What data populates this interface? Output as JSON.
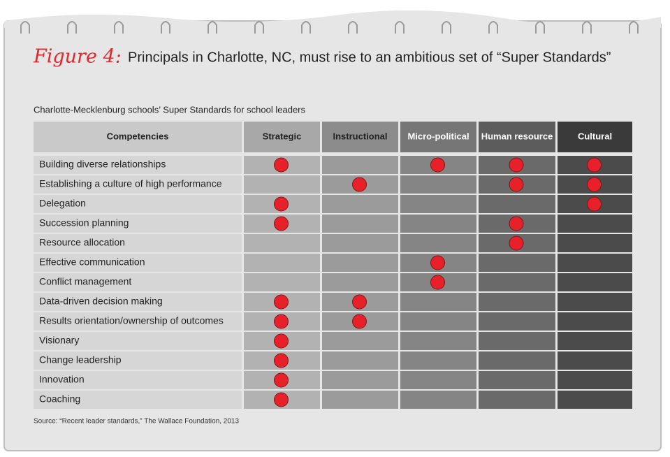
{
  "figure_label": "Figure 4:",
  "title": "Principals in Charlotte, NC, must rise to an ambitious set of “Super Standards”",
  "subtitle": "Charlotte-Mecklenburg schools’ Super Standards for school leaders",
  "table": {
    "columns": [
      "Competencies",
      "Strategic",
      "Instructional",
      "Micro-political",
      "Human resource",
      "Cultural"
    ],
    "rows": [
      {
        "competency": "Building diverse relationships",
        "marks": [
          true,
          false,
          true,
          true,
          true
        ]
      },
      {
        "competency": "Establishing a culture of high performance",
        "marks": [
          false,
          true,
          false,
          true,
          true
        ]
      },
      {
        "competency": "Delegation",
        "marks": [
          true,
          false,
          false,
          false,
          true
        ]
      },
      {
        "competency": "Succession planning",
        "marks": [
          true,
          false,
          false,
          true,
          false
        ]
      },
      {
        "competency": "Resource allocation",
        "marks": [
          false,
          false,
          false,
          true,
          false
        ]
      },
      {
        "competency": "Effective communication",
        "marks": [
          false,
          false,
          true,
          false,
          false
        ]
      },
      {
        "competency": "Conflict management",
        "marks": [
          false,
          false,
          true,
          false,
          false
        ]
      },
      {
        "competency": "Data-driven decision making",
        "marks": [
          true,
          true,
          false,
          false,
          false
        ]
      },
      {
        "competency": "Results orientation/ownership of outcomes",
        "marks": [
          true,
          true,
          false,
          false,
          false
        ]
      },
      {
        "competency": "Visionary",
        "marks": [
          true,
          false,
          false,
          false,
          false
        ]
      },
      {
        "competency": "Change leadership",
        "marks": [
          true,
          false,
          false,
          false,
          false
        ]
      },
      {
        "competency": "Innovation",
        "marks": [
          true,
          false,
          false,
          false,
          false
        ]
      },
      {
        "competency": "Coaching",
        "marks": [
          true,
          false,
          false,
          false,
          false
        ]
      }
    ]
  },
  "source": "Source: “Recent leader standards,” The Wallace Foundation, 2013"
}
